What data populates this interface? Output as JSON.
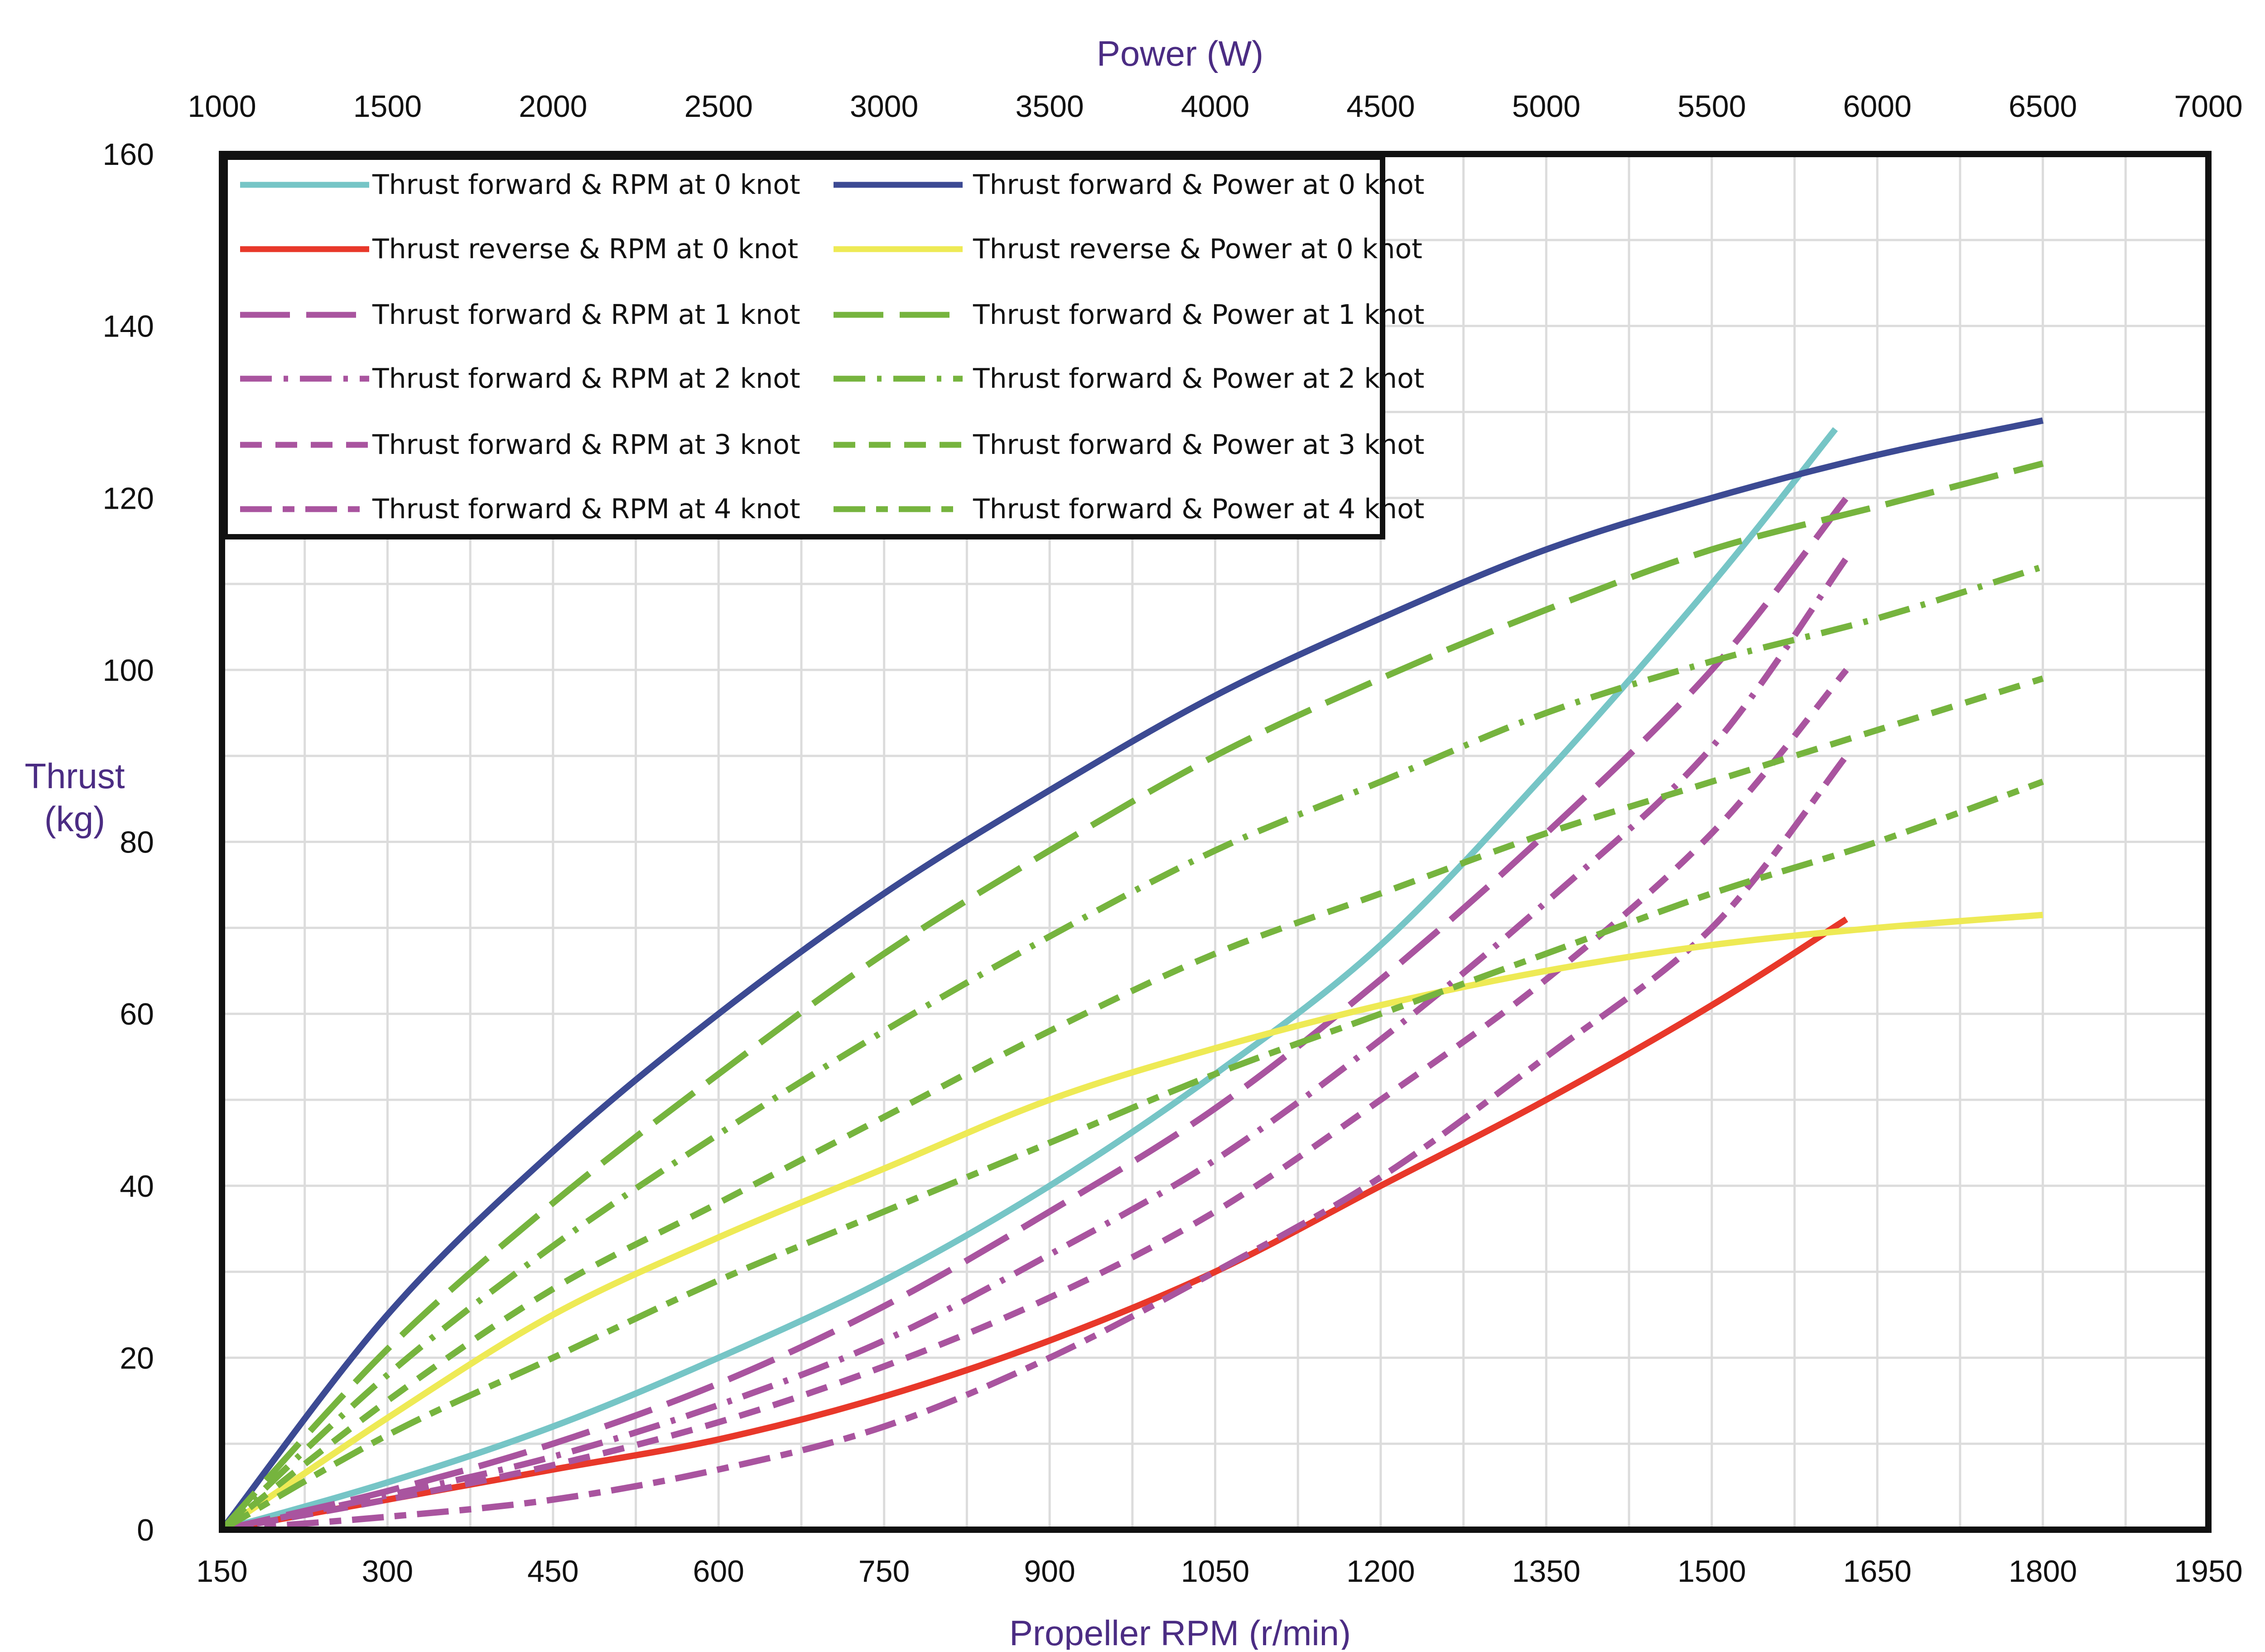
{
  "chart_data": {
    "type": "line",
    "title": "",
    "xlabel": "Propeller RPM (r/min)",
    "x2label": "Power (W)",
    "ylabel": [
      "Thrust",
      "(kg)"
    ],
    "xlim": [
      150,
      1950
    ],
    "x2lim": [
      1000,
      7000
    ],
    "ylim": [
      0,
      160
    ],
    "xticks": [
      "150",
      "300",
      "450",
      "600",
      "750",
      "900",
      "1050",
      "1200",
      "1350",
      "1500",
      "1650",
      "1800",
      "1950"
    ],
    "x2ticks": [
      "1000",
      "1500",
      "2000",
      "2500",
      "3000",
      "3500",
      "4000",
      "4500",
      "5000",
      "5500",
      "6000",
      "6500",
      "7000"
    ],
    "yticks": [
      "0",
      "20",
      "40",
      "60",
      "80",
      "100",
      "120",
      "140",
      "160"
    ],
    "grid": true,
    "legend_position": "top-left",
    "colors": {
      "rpm_forward_0": "#76c5c6",
      "rpm_reverse_0": "#e8382a",
      "rpm_knots": "#a9549f",
      "power_forward_0": "#3c4a93",
      "power_reverse_0": "#eeea55",
      "power_knots": "#76b43e",
      "grid": "#dcdcdc",
      "axis": "#111111",
      "axis_title": "#4b2c83"
    },
    "series": [
      {
        "name": "Thrust forward &  RPM at 0 knot",
        "axis": "rpm",
        "color": "#76c5c6",
        "dash": "solid",
        "x": [
          150,
          300,
          450,
          600,
          750,
          900,
          1050,
          1200,
          1350,
          1500,
          1612
        ],
        "y": [
          0,
          5.5,
          12,
          20,
          29,
          40,
          53,
          68,
          88,
          110,
          128
        ]
      },
      {
        "name": "Thrust reverse  &  RPM at 0 knot",
        "axis": "rpm",
        "color": "#e8382a",
        "dash": "solid",
        "x": [
          150,
          300,
          450,
          600,
          750,
          900,
          1050,
          1200,
          1350,
          1500,
          1622
        ],
        "y": [
          0,
          3.5,
          7,
          10.5,
          15.5,
          22,
          30,
          40,
          50,
          61,
          71
        ]
      },
      {
        "name": "Thrust forward &  RPM at 1 knot",
        "axis": "rpm",
        "color": "#a9549f",
        "dash": "longdash",
        "x": [
          150,
          300,
          450,
          600,
          750,
          900,
          1050,
          1200,
          1350,
          1500,
          1622
        ],
        "y": [
          0,
          4.5,
          10,
          17,
          26,
          37,
          49,
          64,
          81,
          100,
          120
        ]
      },
      {
        "name": "Thrust forward &  RPM at 2 knot",
        "axis": "rpm",
        "color": "#a9549f",
        "dash": "dashdot",
        "x": [
          150,
          300,
          450,
          600,
          750,
          900,
          1050,
          1200,
          1350,
          1500,
          1622
        ],
        "y": [
          0,
          4,
          8.5,
          14.5,
          22,
          32,
          43,
          57,
          73,
          91,
          113
        ]
      },
      {
        "name": "Thrust forward &  RPM at 3 knot",
        "axis": "rpm",
        "color": "#a9549f",
        "dash": "dashed",
        "x": [
          150,
          300,
          450,
          600,
          750,
          900,
          1050,
          1200,
          1350,
          1500,
          1622
        ],
        "y": [
          0,
          3.5,
          7.5,
          12.5,
          19,
          27,
          37,
          50,
          64,
          81,
          100
        ]
      },
      {
        "name": "Thrust forward &  RPM at 4 knot",
        "axis": "rpm",
        "color": "#a9549f",
        "dash": "dashdot2",
        "x": [
          150,
          300,
          450,
          600,
          750,
          900,
          1050,
          1200,
          1350,
          1500,
          1622
        ],
        "y": [
          0,
          1.5,
          3.5,
          7,
          12,
          20,
          30,
          41,
          55,
          70,
          90
        ]
      },
      {
        "name": "Thrust forward & Power at 0 knot",
        "axis": "power",
        "color": "#3c4a93",
        "dash": "solid",
        "x": [
          1000,
          1500,
          2000,
          2500,
          3000,
          3500,
          4000,
          4500,
          5000,
          5500,
          6000,
          6500
        ],
        "y": [
          0,
          25,
          44,
          60,
          74,
          86,
          97,
          106,
          114,
          120,
          125,
          129
        ]
      },
      {
        "name": "Thrust reverse & Power at 0 knot",
        "axis": "power",
        "color": "#eeea55",
        "dash": "solid",
        "x": [
          1000,
          1500,
          2000,
          2500,
          3000,
          3500,
          4000,
          4500,
          5000,
          5500,
          6000,
          6500
        ],
        "y": [
          0,
          13,
          25,
          34,
          42,
          50,
          56,
          61,
          65,
          68,
          70,
          71.5
        ]
      },
      {
        "name": "Thrust forward & Power at 1 knot",
        "axis": "power",
        "color": "#76b43e",
        "dash": "longdash",
        "x": [
          1000,
          1500,
          2000,
          2500,
          3000,
          3500,
          4000,
          4500,
          5000,
          5500,
          6000,
          6500
        ],
        "y": [
          0,
          21,
          38,
          53,
          67,
          79,
          90,
          99,
          107,
          114,
          119,
          124
        ]
      },
      {
        "name": "Thrust forward & Power at 2 knot",
        "axis": "power",
        "color": "#76b43e",
        "dash": "dashdot",
        "x": [
          1000,
          1500,
          2000,
          2500,
          3000,
          3500,
          4000,
          4500,
          5000,
          5500,
          6000,
          6500
        ],
        "y": [
          0,
          18,
          33,
          46,
          58,
          69,
          79,
          87,
          95,
          101,
          106,
          112
        ]
      },
      {
        "name": "Thrust forward & Power at 3 knot",
        "axis": "power",
        "color": "#76b43e",
        "dash": "dashed",
        "x": [
          1000,
          1500,
          2000,
          2500,
          3000,
          3500,
          4000,
          4500,
          5000,
          5500,
          6000,
          6500
        ],
        "y": [
          0,
          15,
          28,
          38,
          48,
          58,
          67,
          74,
          81,
          87,
          93,
          99
        ]
      },
      {
        "name": "Thrust forward & Power at 4 knot",
        "axis": "power",
        "color": "#76b43e",
        "dash": "dashdot2",
        "x": [
          1000,
          1500,
          2000,
          2500,
          3000,
          3500,
          4000,
          4500,
          5000,
          5500,
          6000,
          6500
        ],
        "y": [
          0,
          11,
          20,
          29,
          37,
          45,
          53,
          60,
          67,
          74,
          80,
          87
        ]
      }
    ],
    "legend_left": [
      0,
      1,
      2,
      3,
      4,
      5
    ],
    "legend_right": [
      6,
      7,
      8,
      9,
      10,
      11
    ]
  }
}
